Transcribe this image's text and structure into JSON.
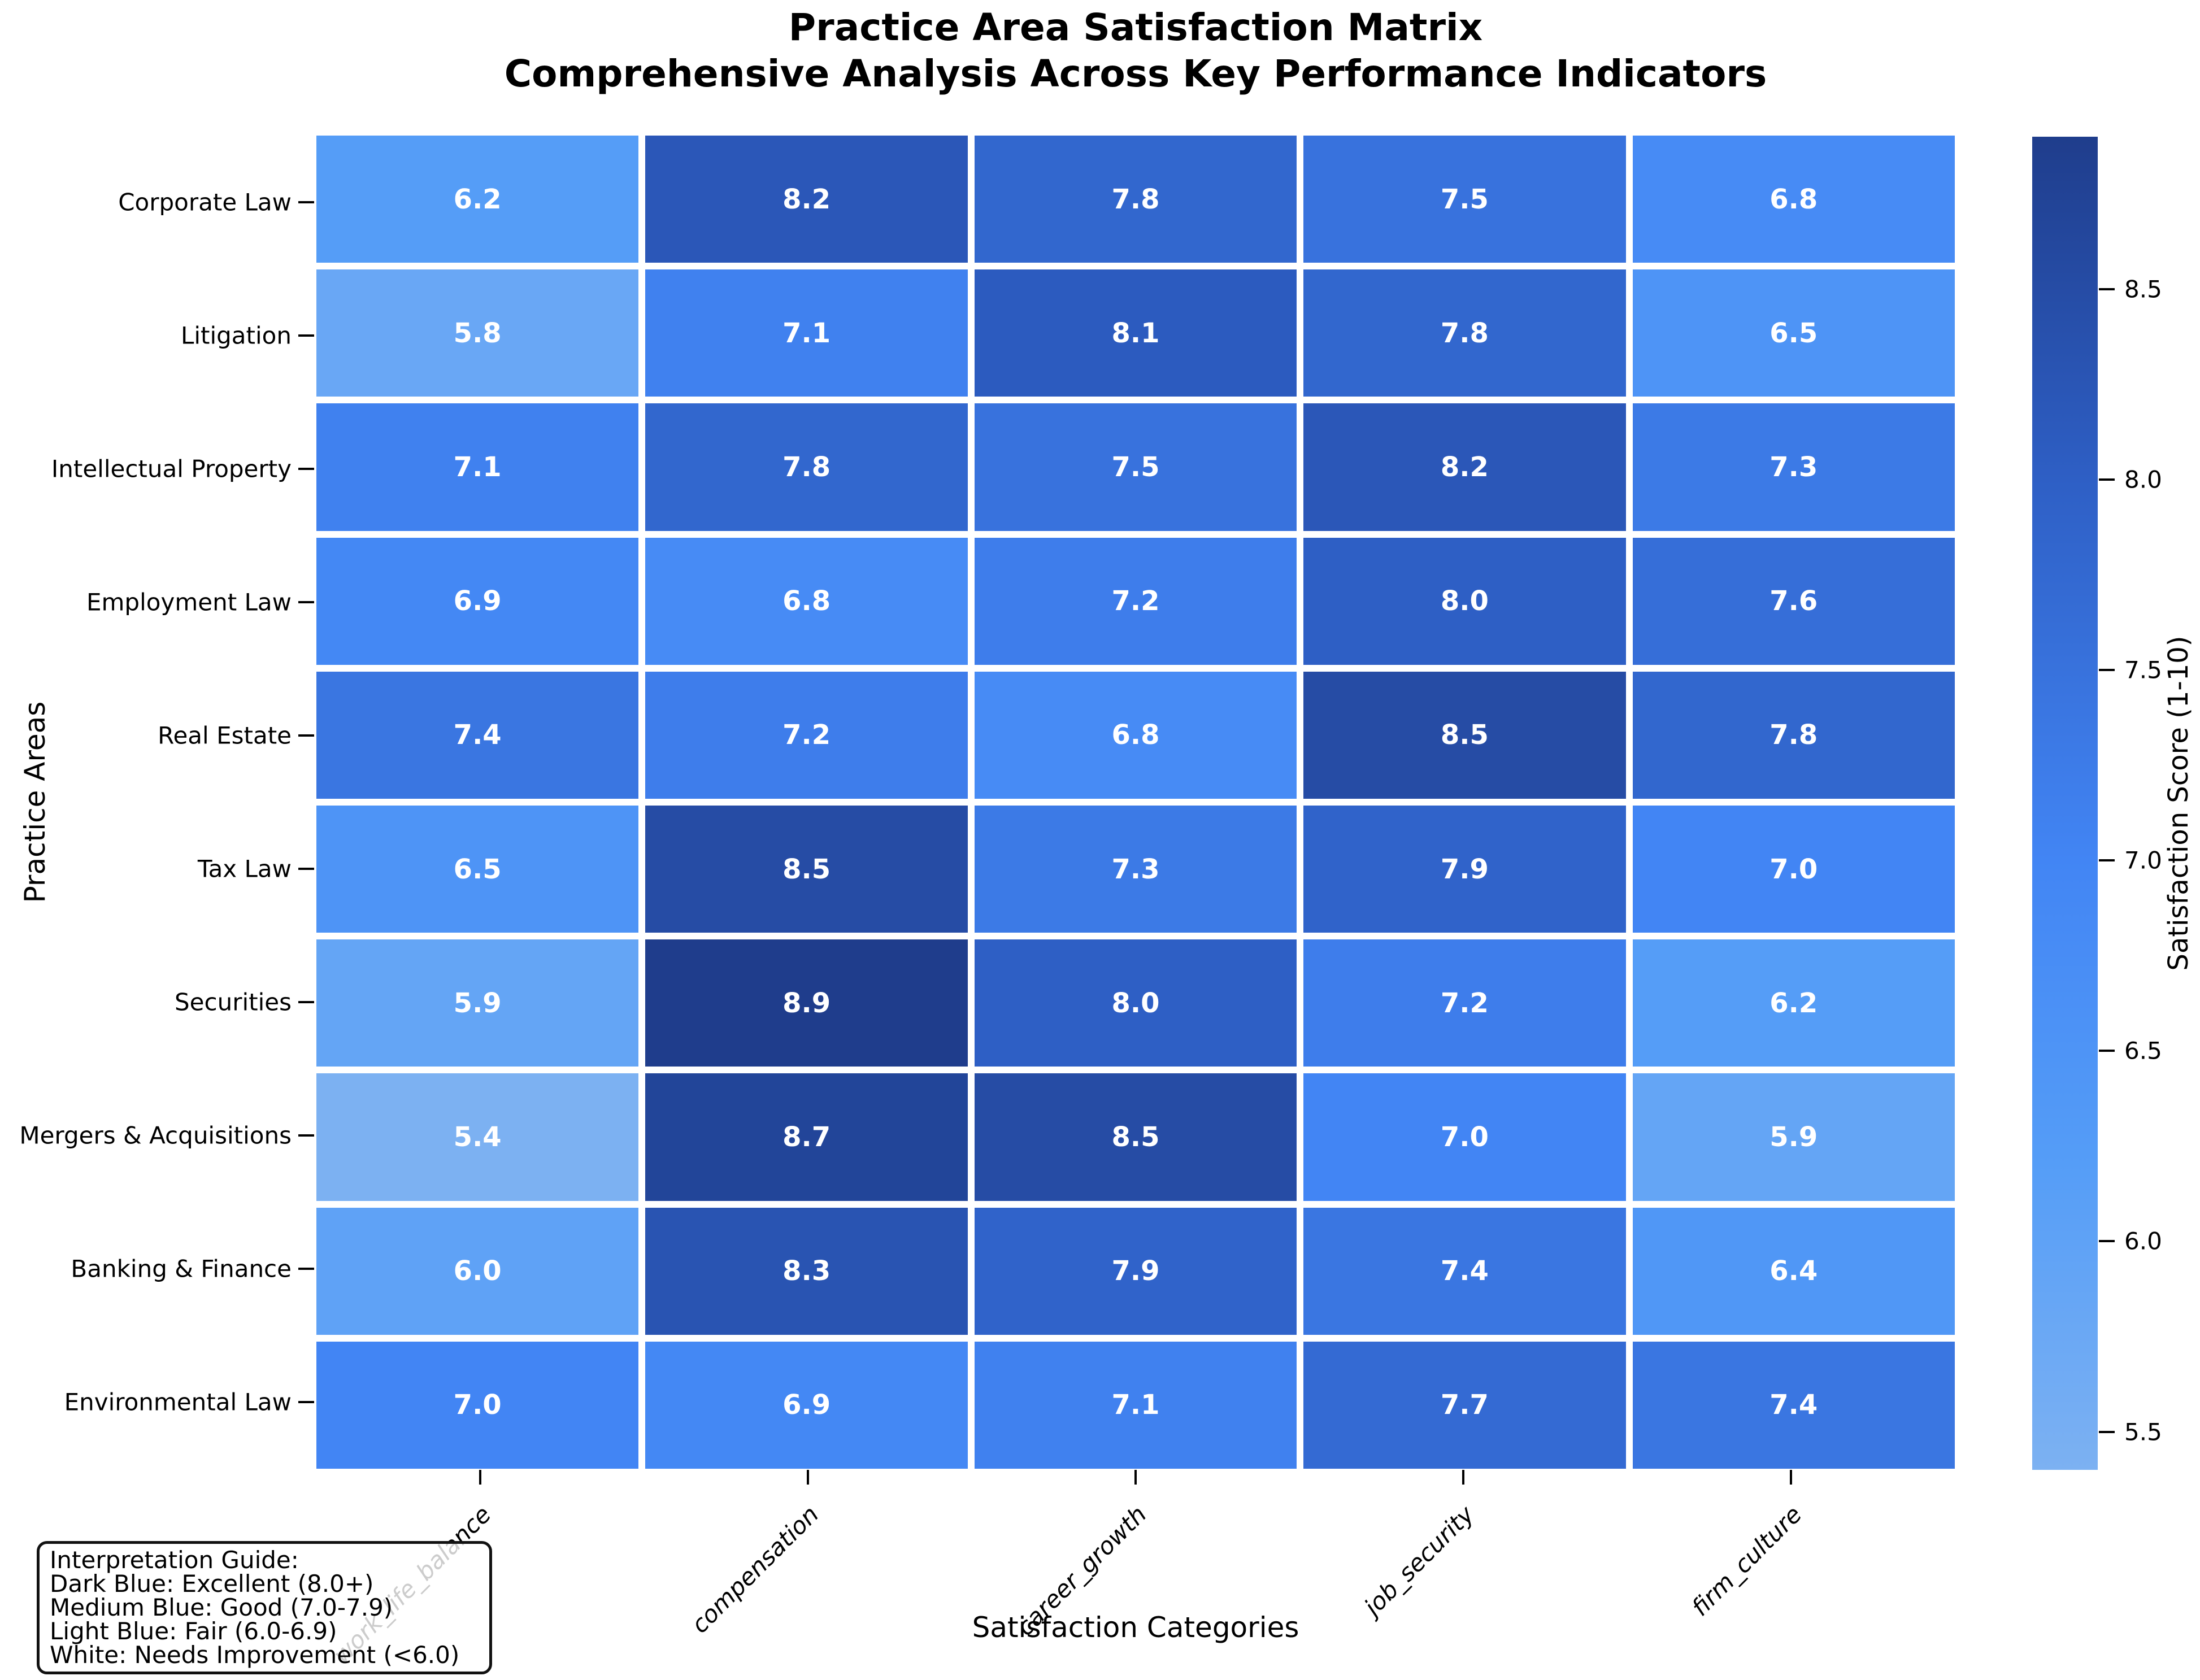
{
  "title": {
    "line1": "Practice Area Satisfaction Matrix",
    "line2": "Comprehensive Analysis Across Key Performance Indicators"
  },
  "chart_data": {
    "type": "heatmap",
    "title": "Practice Area Satisfaction Matrix - Comprehensive Analysis Across Key Performance Indicators",
    "xlabel": "Satisfaction Categories",
    "ylabel": "Practice Areas",
    "x_categories": [
      "work_life_balance",
      "compensation",
      "career_growth",
      "job_security",
      "firm_culture"
    ],
    "y_categories": [
      "Corporate Law",
      "Litigation",
      "Intellectual Property",
      "Employment Law",
      "Real Estate",
      "Tax Law",
      "Securities",
      "Mergers & Acquisitions",
      "Banking & Finance",
      "Environmental Law"
    ],
    "values": [
      [
        6.2,
        8.2,
        7.8,
        7.5,
        6.8
      ],
      [
        5.8,
        7.1,
        8.1,
        7.8,
        6.5
      ],
      [
        7.1,
        7.8,
        7.5,
        8.2,
        7.3
      ],
      [
        6.9,
        6.8,
        7.2,
        8.0,
        7.6
      ],
      [
        7.4,
        7.2,
        6.8,
        8.5,
        7.8
      ],
      [
        6.5,
        8.5,
        7.3,
        7.9,
        7.0
      ],
      [
        5.9,
        8.9,
        8.0,
        7.2,
        6.2
      ],
      [
        5.4,
        8.7,
        8.5,
        7.0,
        5.9
      ],
      [
        6.0,
        8.3,
        7.9,
        7.4,
        6.4
      ],
      [
        7.0,
        6.9,
        7.1,
        7.7,
        7.4
      ]
    ],
    "vmin": 5.4,
    "vmax": 8.9,
    "value_format_decimals": 1,
    "grid_gap_color": "#ffffff",
    "annotation_text_light": "#ffffff",
    "annotation_text_dark": "#262626",
    "colormap_stops": [
      {
        "value": 5.4,
        "color": "#7cb1f2"
      },
      {
        "value": 6.2,
        "color": "#559df7"
      },
      {
        "value": 7.0,
        "color": "#4285f4"
      },
      {
        "value": 8.0,
        "color": "#2e5fc5"
      },
      {
        "value": 8.9,
        "color": "#1f3d8c"
      }
    ],
    "colorbar": {
      "label": "Satisfaction Score (1-10)",
      "ticks": [
        8.5,
        8.0,
        7.5,
        7.0,
        6.5,
        6.0,
        5.5
      ],
      "position": "right"
    },
    "legend_position": "none"
  },
  "interpretation_guide": {
    "lines": [
      "Interpretation Guide:",
      "Dark Blue: Excellent (8.0+)",
      "Medium Blue: Good (7.0-7.9)",
      "Light Blue: Fair (6.0-6.9)",
      "White: Needs Improvement (<6.0)"
    ]
  }
}
